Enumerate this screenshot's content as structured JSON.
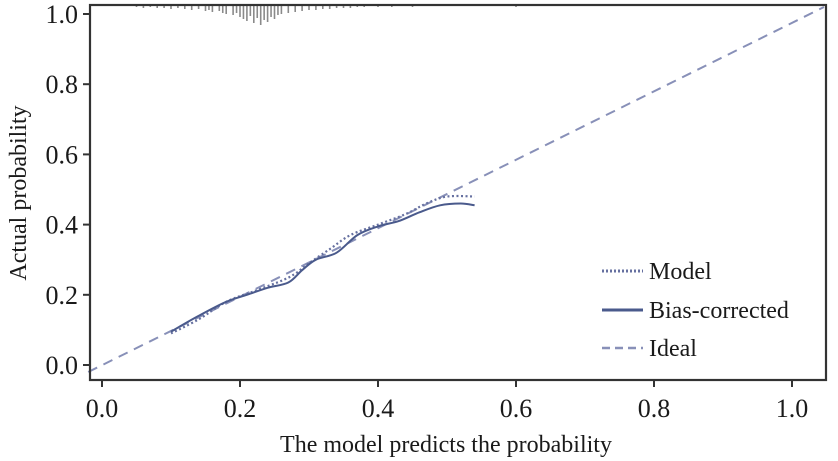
{
  "chart_data": {
    "type": "line",
    "title": "",
    "xlabel": "The model predicts the probability",
    "ylabel": "Actual probability",
    "xlim": [
      -0.02,
      1.05
    ],
    "ylim": [
      -0.04,
      1.03
    ],
    "xticks": [
      0.0,
      0.2,
      0.4,
      0.6,
      0.8,
      1.0
    ],
    "xtick_labels": [
      "0.0",
      "0.2",
      "0.4",
      "0.6",
      "0.8",
      "1.0"
    ],
    "yticks": [
      0.0,
      0.2,
      0.4,
      0.6,
      0.8,
      1.0
    ],
    "ytick_labels": [
      "0.0",
      "0.2",
      "0.4",
      "0.6",
      "0.8",
      "1.0"
    ],
    "grid": false,
    "legend_position": "bottom-right",
    "colors": {
      "series": "#4a5a8c",
      "ideal": "#8890b8",
      "rug": "#8a8a8a",
      "axis": "#333333"
    },
    "series": [
      {
        "name": "Model",
        "style": "dotted",
        "x": [
          0.1,
          0.14,
          0.18,
          0.22,
          0.26,
          0.28,
          0.3,
          0.33,
          0.36,
          0.4,
          0.44,
          0.47,
          0.5,
          0.54
        ],
        "y": [
          0.09,
          0.13,
          0.18,
          0.21,
          0.24,
          0.26,
          0.29,
          0.33,
          0.37,
          0.4,
          0.43,
          0.46,
          0.48,
          0.48
        ]
      },
      {
        "name": "Bias-corrected",
        "style": "solid",
        "x": [
          0.1,
          0.14,
          0.18,
          0.21,
          0.24,
          0.27,
          0.29,
          0.31,
          0.34,
          0.37,
          0.4,
          0.43,
          0.46,
          0.49,
          0.52,
          0.54
        ],
        "y": [
          0.095,
          0.14,
          0.18,
          0.2,
          0.22,
          0.235,
          0.27,
          0.3,
          0.32,
          0.37,
          0.395,
          0.41,
          0.435,
          0.455,
          0.46,
          0.455
        ]
      },
      {
        "name": "Ideal",
        "style": "dashed",
        "x": [
          -0.02,
          1.05
        ],
        "y": [
          -0.02,
          1.05
        ]
      }
    ],
    "rug": {
      "x": [
        0.05,
        0.06,
        0.07,
        0.08,
        0.09,
        0.1,
        0.11,
        0.12,
        0.13,
        0.14,
        0.15,
        0.155,
        0.16,
        0.17,
        0.175,
        0.18,
        0.19,
        0.195,
        0.2,
        0.205,
        0.21,
        0.215,
        0.22,
        0.225,
        0.23,
        0.235,
        0.24,
        0.245,
        0.25,
        0.255,
        0.26,
        0.27,
        0.28,
        0.29,
        0.3,
        0.31,
        0.32,
        0.33,
        0.34,
        0.35,
        0.36,
        0.37,
        0.38,
        0.4,
        0.42,
        0.45,
        0.6
      ],
      "len": [
        2,
        3,
        2,
        3,
        3,
        4,
        3,
        4,
        5,
        4,
        6,
        5,
        7,
        6,
        8,
        9,
        10,
        8,
        12,
        14,
        16,
        11,
        18,
        13,
        20,
        15,
        17,
        12,
        14,
        10,
        9,
        8,
        7,
        6,
        5,
        5,
        4,
        4,
        3,
        3,
        3,
        2,
        2,
        2,
        2,
        2,
        2
      ]
    }
  }
}
